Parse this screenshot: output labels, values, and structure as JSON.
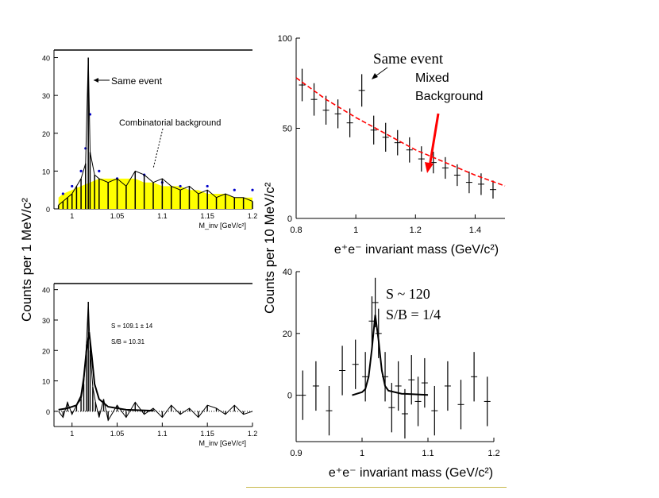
{
  "left_ylabel": "Counts per 1 MeV/c²",
  "right_ylabel": "Counts per 10 MeV/c²",
  "colors": {
    "background_fill": "#ffff00",
    "background_points": "#0000cc",
    "fit": "#ff0000",
    "rule": "#c8b84a"
  },
  "chart_data": [
    {
      "id": "top-left",
      "type": "line",
      "title": "",
      "xlabel": "M_inv [GeV/c²]",
      "ylabel": "",
      "xlim": [
        0.98,
        1.2
      ],
      "ylim": [
        0,
        42
      ],
      "xticks": [
        1,
        1.05,
        1.1,
        1.15,
        1.2
      ],
      "xtick_labels": [
        "1",
        "1.05",
        "1.1",
        "1.15",
        "1.2"
      ],
      "yticks": [
        0,
        10,
        20,
        30,
        40
      ],
      "ytick_labels": [
        "0",
        "10",
        "20",
        "30",
        "40"
      ],
      "annotations": [
        "Same event",
        "Combinatorial background"
      ],
      "series": [
        {
          "name": "Same event",
          "x": [
            0.985,
            0.99,
            0.995,
            1.0,
            1.005,
            1.01,
            1.015,
            1.018,
            1.02,
            1.025,
            1.03,
            1.04,
            1.05,
            1.06,
            1.07,
            1.08,
            1.09,
            1.1,
            1.11,
            1.12,
            1.13,
            1.14,
            1.15,
            1.16,
            1.17,
            1.18,
            1.19,
            1.2
          ],
          "values": [
            1,
            2,
            3,
            4,
            6,
            8,
            12,
            40,
            15,
            9,
            8,
            7,
            8,
            6,
            10,
            9,
            7,
            8,
            6,
            5,
            6,
            4,
            5,
            3,
            4,
            3,
            3,
            2
          ]
        },
        {
          "name": "Combinatorial background",
          "x": [
            0.985,
            0.99,
            1.0,
            1.01,
            1.02,
            1.03,
            1.04,
            1.05,
            1.06,
            1.07,
            1.08,
            1.09,
            1.1,
            1.11,
            1.12,
            1.13,
            1.14,
            1.15,
            1.16,
            1.17,
            1.18,
            1.19,
            1.2
          ],
          "values": [
            3,
            4,
            5,
            6,
            7,
            8,
            8,
            8,
            8,
            8,
            7,
            7,
            6,
            6,
            6,
            5,
            5,
            4,
            4,
            4,
            3,
            3,
            3
          ]
        },
        {
          "name": "Blue background points",
          "x": [
            0.99,
            1.0,
            1.01,
            1.015,
            1.02,
            1.03,
            1.05,
            1.08,
            1.1,
            1.12,
            1.15,
            1.18,
            1.2
          ],
          "values": [
            4,
            6,
            10,
            16,
            25,
            10,
            8,
            9,
            7,
            6,
            6,
            5,
            5
          ]
        }
      ]
    },
    {
      "id": "top-right",
      "type": "scatter",
      "title": "",
      "xlabel": "e⁺e⁻ invariant mass (GeV/c²)",
      "ylabel": "",
      "xlim": [
        0.8,
        1.5
      ],
      "ylim": [
        0,
        100
      ],
      "xticks": [
        0.8,
        1.0,
        1.2,
        1.4
      ],
      "xtick_labels": [
        "0.8",
        "1",
        "1.2",
        "1.4"
      ],
      "yticks": [
        0,
        50,
        100
      ],
      "ytick_labels": [
        "0",
        "50",
        "100"
      ],
      "annotations": [
        "Same event",
        "Mixed",
        "Background"
      ],
      "series": [
        {
          "name": "Same event",
          "x": [
            0.82,
            0.86,
            0.9,
            0.94,
            0.98,
            1.02,
            1.06,
            1.1,
            1.14,
            1.18,
            1.22,
            1.26,
            1.3,
            1.34,
            1.38,
            1.42,
            1.46
          ],
          "values": [
            74,
            66,
            60,
            58,
            53,
            71,
            49,
            45,
            42,
            38,
            33,
            31,
            28,
            24,
            20,
            19,
            16
          ],
          "errors": [
            9,
            9,
            8,
            8,
            8,
            9,
            8,
            8,
            7,
            7,
            7,
            6,
            6,
            6,
            6,
            6,
            5
          ]
        },
        {
          "name": "Mixed Background",
          "x": [
            0.8,
            0.9,
            1.0,
            1.1,
            1.2,
            1.3,
            1.4,
            1.5
          ],
          "values": [
            78,
            66,
            56,
            47,
            38,
            31,
            24,
            18
          ]
        }
      ]
    },
    {
      "id": "bottom-left",
      "type": "line",
      "title": "",
      "xlabel": "M_inv [GeV/c²]",
      "ylabel": "",
      "xlim": [
        0.98,
        1.2
      ],
      "ylim": [
        -5,
        42
      ],
      "xticks": [
        1,
        1.05,
        1.1,
        1.15,
        1.2
      ],
      "xtick_labels": [
        "1",
        "1.05",
        "1.1",
        "1.15",
        "1.2"
      ],
      "yticks": [
        0,
        10,
        20,
        30,
        40
      ],
      "ytick_labels": [
        "0",
        "10",
        "20",
        "30",
        "40"
      ],
      "annotations": [
        "S = 109.1 ± 14",
        "S/B = 10.31"
      ],
      "series": [
        {
          "name": "Background subtracted",
          "x": [
            0.985,
            0.99,
            0.995,
            1.0,
            1.005,
            1.01,
            1.013,
            1.016,
            1.018,
            1.02,
            1.023,
            1.026,
            1.03,
            1.035,
            1.04,
            1.05,
            1.06,
            1.07,
            1.08,
            1.09,
            1.1,
            1.11,
            1.12,
            1.13,
            1.14,
            1.15,
            1.16,
            1.17,
            1.18,
            1.19,
            1.2
          ],
          "values": [
            0,
            -2,
            3,
            -1,
            2,
            4,
            9,
            22,
            36,
            20,
            8,
            3,
            -2,
            4,
            -3,
            2,
            -2,
            3,
            -1,
            1,
            -2,
            2,
            -1,
            1,
            -2,
            2,
            1,
            -1,
            2,
            -1,
            0
          ]
        },
        {
          "name": "Fit",
          "x": [
            0.985,
            0.995,
            1.005,
            1.01,
            1.013,
            1.016,
            1.019,
            1.022,
            1.025,
            1.03,
            1.04,
            1.06,
            1.09
          ],
          "values": [
            0.5,
            1,
            2,
            5,
            11,
            20,
            26,
            18,
            9,
            4,
            1.5,
            0.5,
            0.2
          ]
        }
      ]
    },
    {
      "id": "bottom-right",
      "type": "scatter",
      "title": "",
      "xlabel": "e⁺e⁻ invariant mass (GeV/c²)",
      "ylabel": "",
      "xlim": [
        0.9,
        1.2
      ],
      "ylim": [
        -15,
        40
      ],
      "xticks": [
        0.9,
        1.0,
        1.1,
        1.2
      ],
      "xtick_labels": [
        "0.9",
        "1",
        "1.1",
        "1.2"
      ],
      "yticks": [
        0,
        20,
        40
      ],
      "ytick_labels": [
        "0",
        "20",
        "40"
      ],
      "annotations": [
        "S ~ 120",
        "S/B = 1/4"
      ],
      "series": [
        {
          "name": "Background subtracted",
          "x": [
            0.91,
            0.93,
            0.95,
            0.97,
            0.99,
            1.005,
            1.015,
            1.02,
            1.025,
            1.035,
            1.045,
            1.055,
            1.065,
            1.075,
            1.085,
            1.095,
            1.11,
            1.13,
            1.15,
            1.17,
            1.19
          ],
          "values": [
            0,
            3,
            -5,
            8,
            10,
            6,
            24,
            30,
            20,
            6,
            -4,
            3,
            -6,
            5,
            -2,
            4,
            -5,
            3,
            -3,
            6,
            -2
          ],
          "errors": [
            8,
            8,
            8,
            8,
            8,
            8,
            8,
            8,
            8,
            8,
            8,
            8,
            8,
            8,
            8,
            8,
            8,
            8,
            8,
            8,
            8
          ]
        },
        {
          "name": "Fit",
          "x": [
            0.985,
            1.0,
            1.005,
            1.01,
            1.015,
            1.02,
            1.025,
            1.03,
            1.035,
            1.04,
            1.06,
            1.1
          ],
          "values": [
            0,
            1,
            2,
            6,
            15,
            26,
            18,
            8,
            3,
            1.5,
            0.5,
            0.1
          ]
        }
      ]
    }
  ]
}
